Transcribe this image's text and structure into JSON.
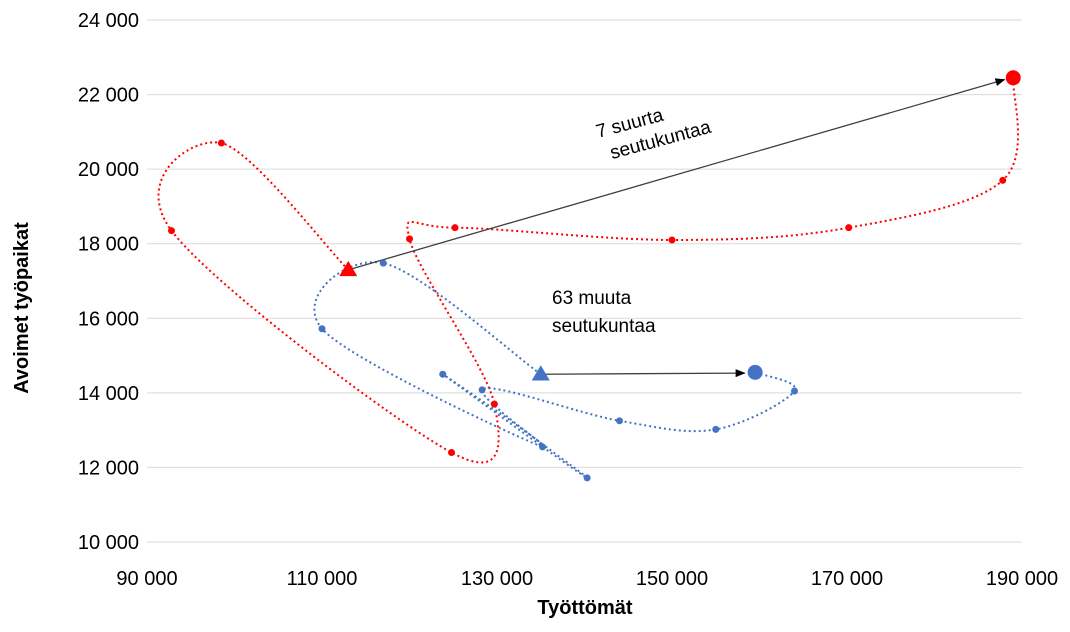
{
  "chart_data": {
    "type": "scatter",
    "title": "",
    "xlabel": "Työttömät",
    "ylabel": "Avoimet työpaikat",
    "xlim": [
      90000,
      190000
    ],
    "ylim": [
      10000,
      24000
    ],
    "xticks": [
      90000,
      110000,
      130000,
      150000,
      170000,
      190000
    ],
    "yticks": [
      10000,
      12000,
      14000,
      16000,
      18000,
      20000,
      22000,
      24000
    ],
    "xtick_labels": [
      "90 000",
      "110 000",
      "130 000",
      "150 000",
      "170 000",
      "190 000"
    ],
    "ytick_labels": [
      "10 000",
      "12 000",
      "14 000",
      "16 000",
      "18 000",
      "20 000",
      "22 000",
      "24 000"
    ],
    "grid": "horizontal",
    "series": [
      {
        "color": "#ff0000",
        "line_style": "dotted smoothed",
        "start_marker": "triangle",
        "end_marker": "large circle",
        "points": [
          [
            113000,
            17300
          ],
          [
            98500,
            20700
          ],
          [
            92800,
            18350
          ],
          [
            124800,
            12400
          ],
          [
            129700,
            13700
          ],
          [
            120000,
            18130
          ],
          [
            125200,
            18430
          ],
          [
            150000,
            18100
          ],
          [
            170200,
            18430
          ],
          [
            187800,
            19700
          ],
          [
            189000,
            22450
          ]
        ]
      },
      {
        "color": "#4472c4",
        "line_style": "dotted smoothed",
        "start_marker": "triangle",
        "end_marker": "large circle",
        "points": [
          [
            135000,
            14500
          ],
          [
            117000,
            17480
          ],
          [
            110000,
            15720
          ],
          [
            135200,
            12550
          ],
          [
            123800,
            14500
          ],
          [
            140300,
            11720
          ],
          [
            128300,
            14080
          ],
          [
            144000,
            13250
          ],
          [
            155000,
            13020
          ],
          [
            164000,
            14050
          ],
          [
            159500,
            14550
          ]
        ]
      }
    ],
    "arrows": [
      {
        "color": "#404040",
        "from": [
          113000,
          17300
        ],
        "to": [
          188000,
          22400
        ]
      },
      {
        "color": "#404040",
        "from": [
          135000,
          14500
        ],
        "to": [
          158300,
          14530
        ]
      }
    ],
    "annotations": [
      {
        "lines": [
          "7 suurta",
          "seutukuntaa"
        ],
        "rotation": -15
      },
      {
        "lines": [
          "63 muuta",
          "seutukuntaa"
        ],
        "rotation": 0
      }
    ]
  }
}
